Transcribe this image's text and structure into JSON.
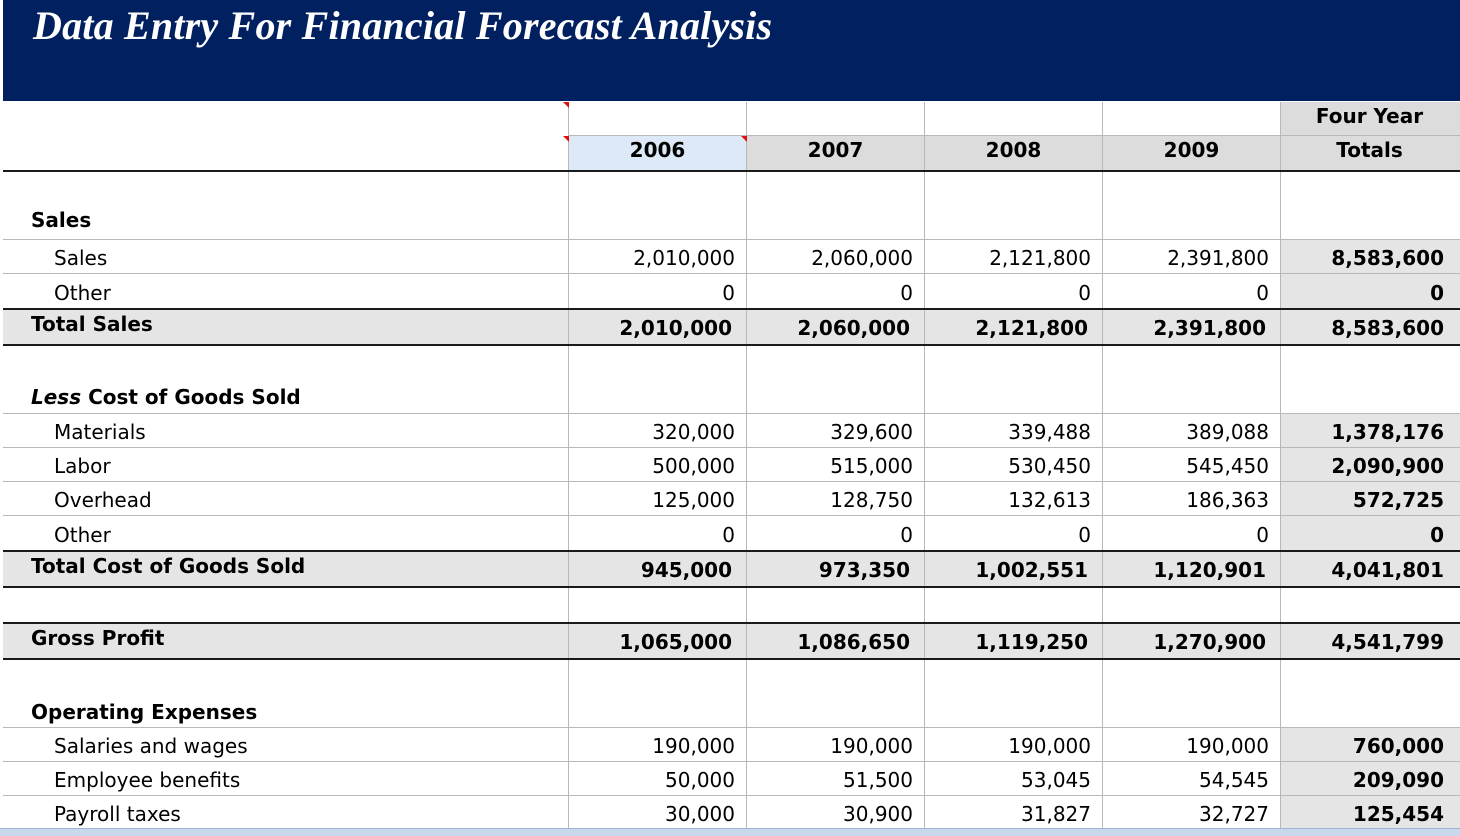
{
  "title": "Data Entry For Financial Forecast Analysis",
  "header": {
    "years": [
      "2006",
      "2007",
      "2008",
      "2009"
    ],
    "totals_line1": "Four Year",
    "totals_line2": "Totals"
  },
  "sales": {
    "heading": "Sales",
    "rows": [
      {
        "label": "Sales",
        "values": [
          "2,010,000",
          "2,060,000",
          "2,121,800",
          "2,391,800"
        ],
        "total": "8,583,600"
      },
      {
        "label": "Other",
        "values": [
          "0",
          "0",
          "0",
          "0"
        ],
        "total": "0"
      }
    ],
    "total_row": {
      "label": "Total Sales",
      "values": [
        "2,010,000",
        "2,060,000",
        "2,121,800",
        "2,391,800"
      ],
      "total": "8,583,600"
    }
  },
  "cogs": {
    "heading_prefix": "Less",
    "heading": " Cost of Goods Sold",
    "rows": [
      {
        "label": "Materials",
        "values": [
          "320,000",
          "329,600",
          "339,488",
          "389,088"
        ],
        "total": "1,378,176"
      },
      {
        "label": "Labor",
        "values": [
          "500,000",
          "515,000",
          "530,450",
          "545,450"
        ],
        "total": "2,090,900"
      },
      {
        "label": "Overhead",
        "values": [
          "125,000",
          "128,750",
          "132,613",
          "186,363"
        ],
        "total": "572,725"
      },
      {
        "label": "Other",
        "values": [
          "0",
          "0",
          "0",
          "0"
        ],
        "total": "0"
      }
    ],
    "total_row": {
      "label": "Total Cost of Goods Sold",
      "values": [
        "945,000",
        "973,350",
        "1,002,551",
        "1,120,901"
      ],
      "total": "4,041,801"
    }
  },
  "gross_profit": {
    "label": "Gross Profit",
    "values": [
      "1,065,000",
      "1,086,650",
      "1,119,250",
      "1,270,900"
    ],
    "total": "4,541,799"
  },
  "opex": {
    "heading": "Operating Expenses",
    "rows": [
      {
        "label": "Salaries and wages",
        "values": [
          "190,000",
          "190,000",
          "190,000",
          "190,000"
        ],
        "total": "760,000"
      },
      {
        "label": "Employee benefits",
        "values": [
          "50,000",
          "51,500",
          "53,045",
          "54,545"
        ],
        "total": "209,090"
      },
      {
        "label": "Payroll taxes",
        "values": [
          "30,000",
          "30,900",
          "31,827",
          "32,727"
        ],
        "total": "125,454"
      }
    ]
  },
  "colors": {
    "banner": "#00205f",
    "subtotal_fill": "#e5e5e5",
    "selected_cell": "#dde9f6",
    "comment_marker": "#e01010"
  }
}
